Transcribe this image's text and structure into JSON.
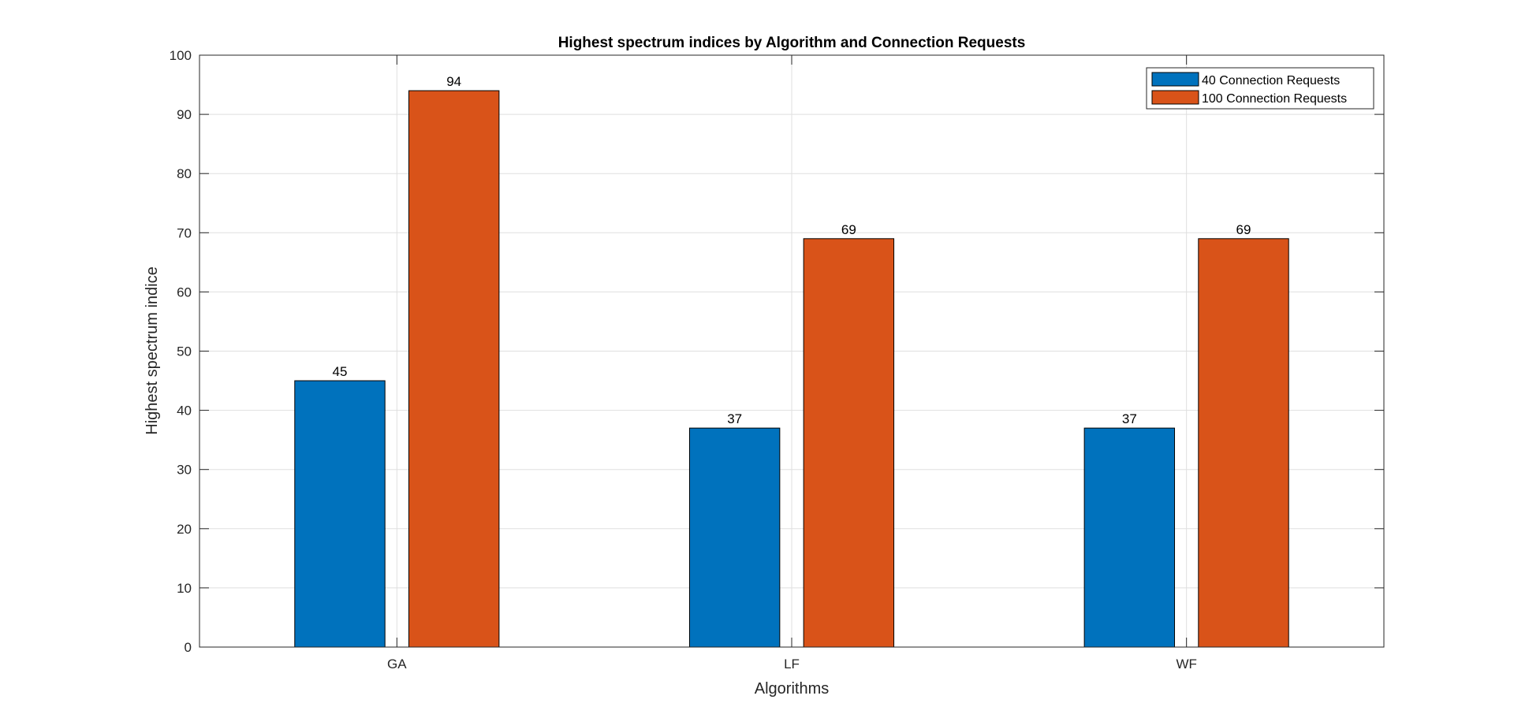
{
  "chart_data": {
    "type": "bar",
    "title": "Highest spectrum indices by Algorithm and Connection Requests",
    "xlabel": "Algorithms",
    "ylabel": "Highest spectrum indice",
    "categories": [
      "GA",
      "LF",
      "WF"
    ],
    "ylim": [
      0,
      100
    ],
    "yticks": [
      0,
      10,
      20,
      30,
      40,
      50,
      60,
      70,
      80,
      90,
      100
    ],
    "grid": true,
    "legend_position": "top-right",
    "series": [
      {
        "name": "40 Connection Requests",
        "values": [
          45,
          37,
          37
        ],
        "color": "#0072BD"
      },
      {
        "name": "100 Connection Requests",
        "values": [
          94,
          69,
          69
        ],
        "color": "#D95319"
      }
    ]
  }
}
